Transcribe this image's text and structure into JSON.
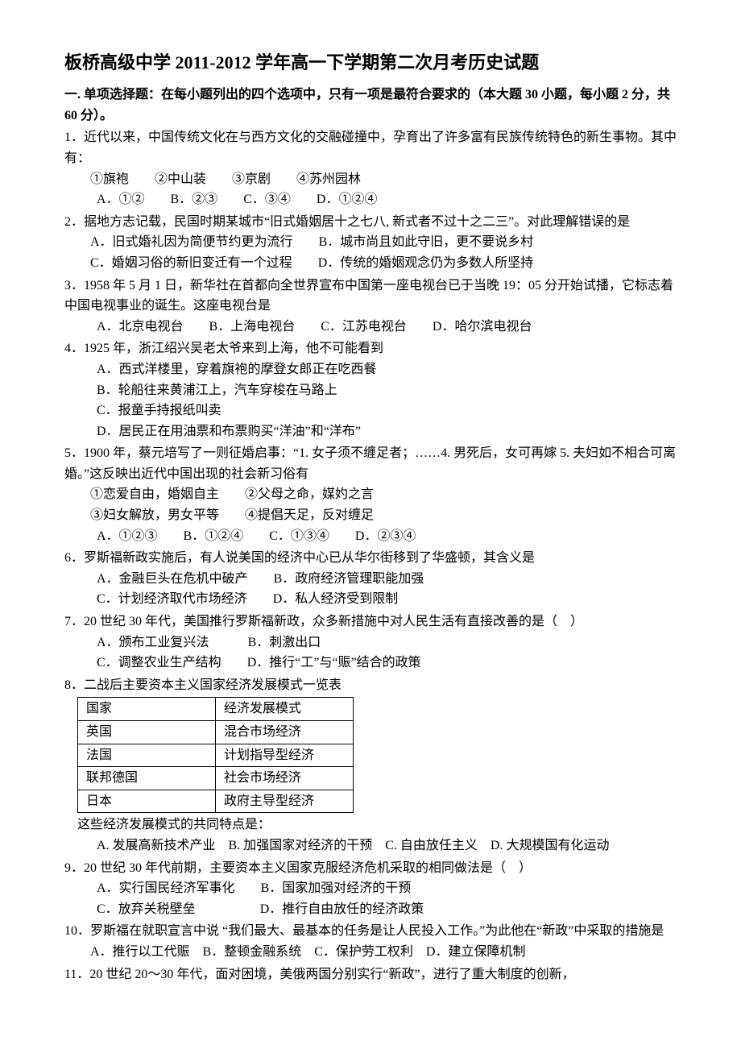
{
  "title": "板桥高级中学 2011-2012 学年高一下学期第二次月考历史试题",
  "section1_head": "一. 单项选择题：在每小题列出的四个选项中，只有一项是最符合要求的（本大题 30 小题，每小题 2 分，共 60 分）。",
  "q1": {
    "stem": "1．近代以来，中国传统文化在与西方文化的交融碰撞中，孕育出了许多富有民族传统特色的新生事物。其中有：",
    "items": "①旗袍　　②中山装　　③京剧　　④苏州园林",
    "opts": "A．①②　　B．②③　　C．③④　　D．①②④"
  },
  "q2": {
    "stem": "2．据地方志记载，民国时期某城市“旧式婚姻居十之七八, 新式者不过十之二三”。对此理解错误的是",
    "a": "A．旧式婚礼因为简便节约更为流行",
    "b": "B．城市尚且如此守旧，更不要说乡村",
    "c": "C．婚姻习俗的新旧变迁有一个过程",
    "d": "D．传统的婚姻观念仍为多数人所坚持"
  },
  "q3": {
    "stem": "3．1958 年 5 月 1 日，新华社在首都向全世界宣布中国第一座电视台已于当晚 19：05 分开始试播，它标志着中国电视事业的诞生。这座电视台是",
    "opts": "A．北京电视台　　B．上海电视台　　C．江苏电视台　　D．哈尔滨电视台"
  },
  "q4": {
    "stem": "4．1925 年，浙江绍兴吴老太爷来到上海，他不可能看到",
    "a": "A．西式洋楼里，穿着旗袍的摩登女郎正在吃西餐",
    "b": "B．轮船往来黄浦江上，汽车穿梭在马路上",
    "c": "C．报童手持报纸叫卖",
    "d": "D．居民正在用油票和布票购买“洋油”和“洋布”"
  },
  "q5": {
    "stem": "5．1900 年，蔡元培写了一则征婚启事：“1. 女子须不缠足者；……4. 男死后，女可再嫁 5. 夫妇如不相合可离婚。”这反映出近代中国出现的社会新习俗有",
    "i1": "①恋爱自由，婚姻自主　　②父母之命，媒妁之言",
    "i2": "③妇女解放，男女平等　　④提倡天足，反对缠足",
    "opts": "A．①②③　　B．①②④　　C．①③④　　D．②③④"
  },
  "q6": {
    "stem": "6．罗斯福新政实施后，有人说美国的经济中心已从华尔街移到了华盛顿，其含义是",
    "a": "A．金融巨头在危机中破产",
    "b": "B．政府经济管理职能加强",
    "c": "C．计划经济取代市场经济",
    "d": "D．私人经济受到限制"
  },
  "q7": {
    "stem": "7．20 世纪 30 年代，美国推行罗斯福新政，众多新措施中对人民生活有直接改善的是（　）",
    "a": "A．颁布工业复兴法",
    "b": "B．刺激出口",
    "c": "C．调整农业生产结构",
    "d": "D．推行“工”与“赈”结合的政策"
  },
  "q8": {
    "stem": "8．二战后主要资本主义国家经济发展模式一览表",
    "table": {
      "header": [
        "国家",
        "经济发展模式"
      ],
      "rows": [
        [
          "英国",
          "混合市场经济"
        ],
        [
          "法国",
          "计划指导型经济"
        ],
        [
          "联邦德国",
          "社会市场经济"
        ],
        [
          "日本",
          "政府主导型经济"
        ]
      ]
    },
    "tail": "这些经济发展模式的共同特点是：",
    "opts": "A. 发展高新技术产业　B. 加强国家对经济的干预　C. 自由放任主义　D. 大规模国有化运动"
  },
  "q9": {
    "stem": "9．20 世纪 30 年代前期，主要资本主义国家克服经济危机采取的相同做法是（　）",
    "a": "A．实行国民经济军事化",
    "b": "B．国家加强对经济的干预",
    "c": "C．放弃关税壁垒",
    "d": "D．推行自由放任的经济政策"
  },
  "q10": {
    "stem": "10．罗斯福在就职宣言中说 “我们最大、最基本的任务是让人民投入工作。”为此他在“新政”中采取的措施是",
    "opts": "A．推行以工代赈　B．整顿金融系统　C．保护劳工权利　D．建立保障机制"
  },
  "q11": {
    "stem": "11．20 世纪 20～30 年代，面对困境，美俄两国分别实行“新政”，进行了重大制度的创新，"
  }
}
